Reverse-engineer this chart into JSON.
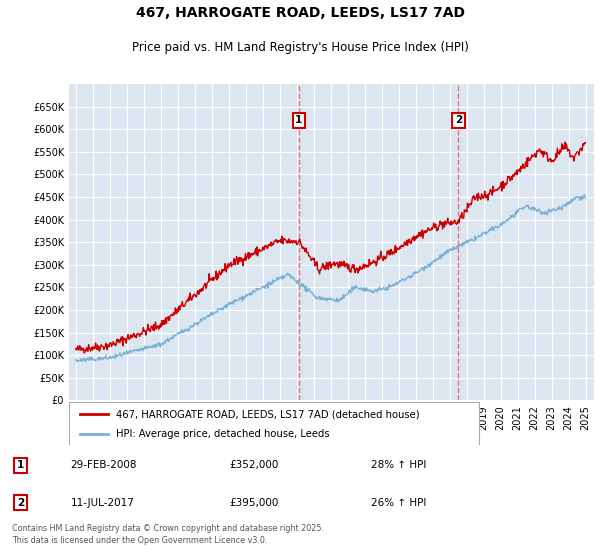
{
  "title_line1": "467, HARROGATE ROAD, LEEDS, LS17 7AD",
  "title_line2": "Price paid vs. HM Land Registry's House Price Index (HPI)",
  "background_color": "#ffffff",
  "plot_bg_color": "#dce6f1",
  "grid_color": "#ffffff",
  "red_color": "#cc0000",
  "blue_color": "#7bafd4",
  "vline_color": "#e87070",
  "marker1_date": 2008.13,
  "marker2_date": 2017.52,
  "legend_label_red": "467, HARROGATE ROAD, LEEDS, LS17 7AD (detached house)",
  "legend_label_blue": "HPI: Average price, detached house, Leeds",
  "transaction1_label": "1",
  "transaction1_date": "29-FEB-2008",
  "transaction1_price": "£352,000",
  "transaction1_hpi": "28% ↑ HPI",
  "transaction2_label": "2",
  "transaction2_date": "11-JUL-2017",
  "transaction2_price": "£395,000",
  "transaction2_hpi": "26% ↑ HPI",
  "footer": "Contains HM Land Registry data © Crown copyright and database right 2025.\nThis data is licensed under the Open Government Licence v3.0.",
  "ylim_min": 0,
  "ylim_max": 700000,
  "yticks": [
    0,
    50000,
    100000,
    150000,
    200000,
    250000,
    300000,
    350000,
    400000,
    450000,
    500000,
    550000,
    600000,
    650000
  ],
  "ytick_labels": [
    "£0",
    "£50K",
    "£100K",
    "£150K",
    "£200K",
    "£250K",
    "£300K",
    "£350K",
    "£400K",
    "£450K",
    "£500K",
    "£550K",
    "£600K",
    "£650K"
  ],
  "xlim_min": 1994.6,
  "xlim_max": 2025.5
}
